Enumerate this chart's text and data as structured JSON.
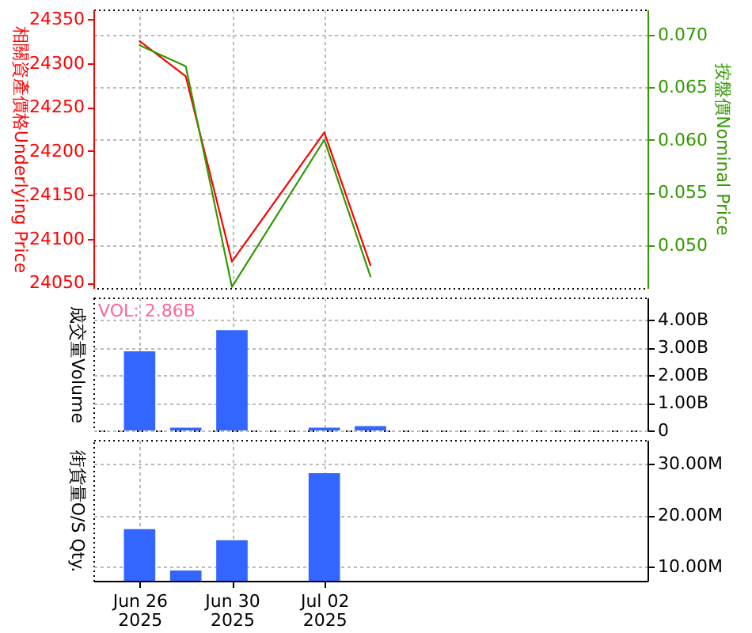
{
  "chart_data": [
    {
      "type": "line",
      "categories": [
        null,
        "Jun 26\n2025",
        null,
        "Jun 30\n2025",
        null,
        "Jul 02\n2025",
        null,
        null,
        null,
        null,
        null,
        null,
        null
      ],
      "series": [
        {
          "color": "#ff0000",
          "values": [
            null,
            24325,
            24285,
            24074,
            null,
            24221,
            24070,
            null,
            null,
            null,
            null,
            null,
            null
          ]
        },
        {
          "color": "#339900",
          "axis": "y2",
          "values": [
            null,
            0.069,
            0.067,
            0.046,
            null,
            0.06,
            0.047,
            null,
            null,
            null,
            null,
            null,
            null
          ]
        }
      ],
      "ylabel": "相關資產價格Underlying Price",
      "y2label": "按盤價Nominal Price",
      "ylim": [
        24044,
        24361
      ],
      "yticks": [
        24050,
        24100,
        24150,
        24200,
        24250,
        24300,
        24350
      ],
      "y2lim": [
        0.0459,
        0.0724
      ],
      "y2ticks": [
        {
          "value": 0.05,
          "label": "0.050"
        },
        {
          "value": 0.055,
          "label": "0.055"
        },
        {
          "value": 0.06,
          "label": "0.060"
        },
        {
          "value": 0.065,
          "label": "0.065"
        },
        {
          "value": 0.07,
          "label": "0.070"
        }
      ],
      "grid": true,
      "tick_labels": "y"
    },
    {
      "type": "bar",
      "categories": [
        null,
        "Jun 26\n2025",
        null,
        "Jun 30\n2025",
        null,
        "Jul 02\n2025",
        null,
        null,
        null,
        null,
        null,
        null,
        null
      ],
      "series": [
        {
          "color": "#3366ff",
          "axis": "y2",
          "values": [
            null,
            2860000000,
            100000000,
            3620000000,
            null,
            100000000,
            160000000,
            null,
            null,
            null,
            null,
            null,
            null
          ]
        }
      ],
      "y2label": "成交量Volume",
      "y2lim": [
        0,
        4800000000
      ],
      "y2ticks": [
        0,
        {
          "value": 1000000000,
          "label": "1.00B"
        },
        {
          "value": 2000000000,
          "label": "2.00B"
        },
        {
          "value": 3000000000,
          "label": "3.00B"
        },
        {
          "value": 4000000000,
          "label": "4.00B"
        }
      ],
      "grid": true,
      "tick_labels": "y",
      "annotations": [
        "VOL: 2.86B"
      ]
    },
    {
      "type": "bar",
      "categories": [
        null,
        "Jun 26\n2025",
        null,
        "Jun 30\n2025",
        null,
        "Jul 02\n2025",
        null,
        null,
        null,
        null,
        null,
        null,
        null
      ],
      "series": [
        {
          "color": "#3366ff",
          "axis": "y2",
          "values": [
            null,
            17300000,
            9200000,
            15100000,
            null,
            28200000,
            null,
            null,
            null,
            null,
            null,
            null,
            null
          ]
        }
      ],
      "y2label": "街貨量O/S Qty.",
      "y2lim": [
        7200000,
        34700000
      ],
      "y2ticks": [
        {
          "value": 10000000,
          "label": "10.00M"
        },
        {
          "value": 20000000,
          "label": "20.00M"
        },
        {
          "value": 30000000,
          "label": "30.00M"
        }
      ],
      "grid": true
    }
  ]
}
